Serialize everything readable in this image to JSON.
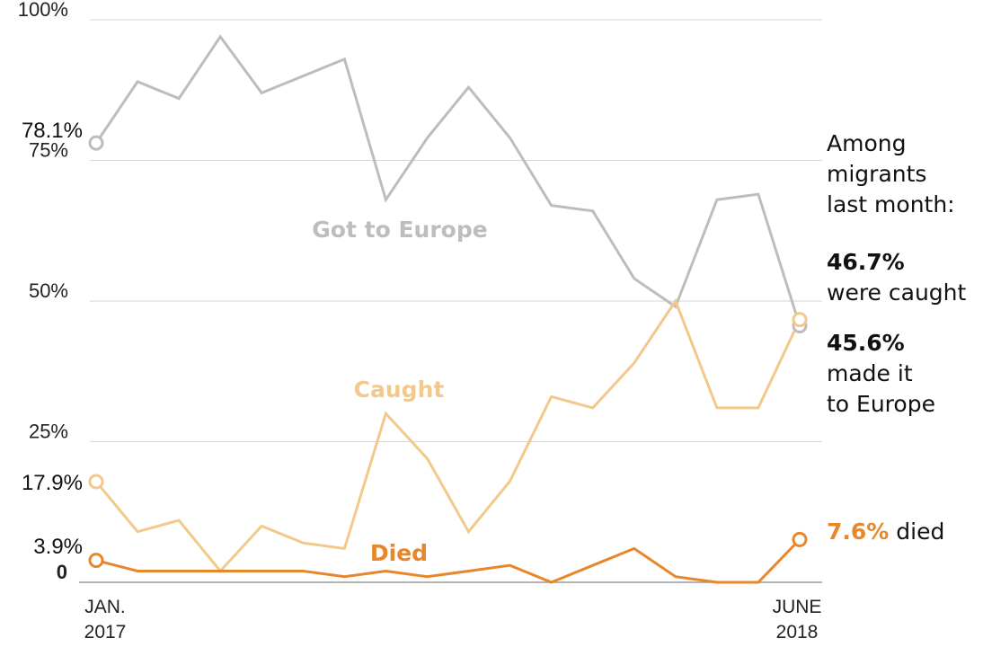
{
  "chart_data": {
    "type": "line",
    "x": [
      "2017-01",
      "2017-02",
      "2017-03",
      "2017-04",
      "2017-05",
      "2017-06",
      "2017-07",
      "2017-08",
      "2017-09",
      "2017-10",
      "2017-11",
      "2017-12",
      "2018-01",
      "2018-02",
      "2018-03",
      "2018-04",
      "2018-05",
      "2018-06"
    ],
    "x_tick_labels": [
      {
        "line1": "JAN.",
        "line2": "2017"
      },
      {
        "line1": "JUNE",
        "line2": "2018"
      }
    ],
    "ylim": [
      0,
      100
    ],
    "y_ticks": [
      {
        "value": 100,
        "label": "100%"
      },
      {
        "value": 75,
        "label": "75%"
      },
      {
        "value": 50,
        "label": "50%"
      },
      {
        "value": 25,
        "label": "25%"
      },
      {
        "value": 0,
        "label": "0"
      }
    ],
    "grid": true,
    "series": [
      {
        "name": "Got to Europe",
        "color": "#bdbdbd",
        "values": [
          78.1,
          89,
          86,
          97,
          87,
          90,
          93,
          68,
          79,
          88,
          79,
          67,
          66,
          54,
          49,
          68,
          69,
          45.6
        ],
        "start_label": "78.1%"
      },
      {
        "name": "Caught",
        "color": "#f2c98a",
        "values": [
          17.9,
          9,
          11,
          2,
          10,
          7,
          6,
          30,
          22,
          9,
          18,
          33,
          31,
          39,
          50,
          31,
          31,
          46.7
        ],
        "start_label": "17.9%"
      },
      {
        "name": "Died",
        "color": "#e8862a",
        "values": [
          3.9,
          2,
          2,
          2,
          2,
          2,
          1,
          2,
          1,
          2,
          3,
          0,
          3,
          6,
          1,
          0,
          0,
          7.6
        ],
        "start_label": "3.9%"
      }
    ],
    "annotation": {
      "heading": [
        "Among",
        "migrants",
        "last month:"
      ],
      "caught_value": "46.7%",
      "caught_text": "were caught",
      "europe_value": "45.6%",
      "europe_text_1": "made it",
      "europe_text_2": "to Europe",
      "died_value": "7.6%",
      "died_text": " died"
    }
  }
}
